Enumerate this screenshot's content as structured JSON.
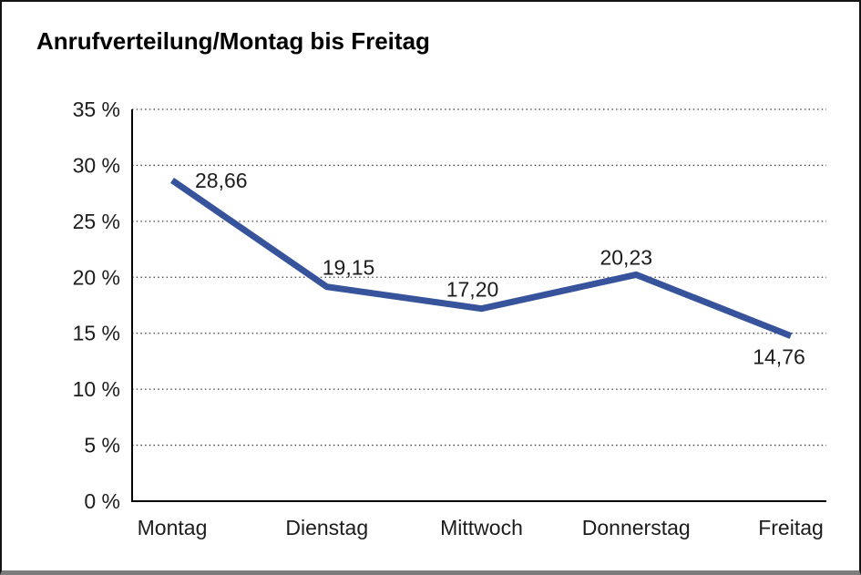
{
  "title": "Anrufverteilung/Montag bis Freitag",
  "chart_data": {
    "type": "line",
    "title": "Anrufverteilung/Montag bis Freitag",
    "categories": [
      "Montag",
      "Dienstag",
      "Mittwoch",
      "Donnerstag",
      "Freitag"
    ],
    "values": [
      28.66,
      19.15,
      17.2,
      20.23,
      14.76
    ],
    "point_labels": [
      "28,66",
      "19,15",
      "17,20",
      "20,23",
      "14,76"
    ],
    "y_ticks": [
      "0 %",
      "5 %",
      "10 %",
      "15 %",
      "20 %",
      "25 %",
      "30 %",
      "35 %"
    ],
    "ylim": [
      0,
      35
    ],
    "y_step": 5,
    "xlabel": "",
    "ylabel": "",
    "grid": "horizontal-dotted",
    "legend": "none",
    "line_color": "#37539B",
    "axis_color": "#000000",
    "gridline_color": "#3d3d3d",
    "text_color": "#1c1c1c"
  }
}
